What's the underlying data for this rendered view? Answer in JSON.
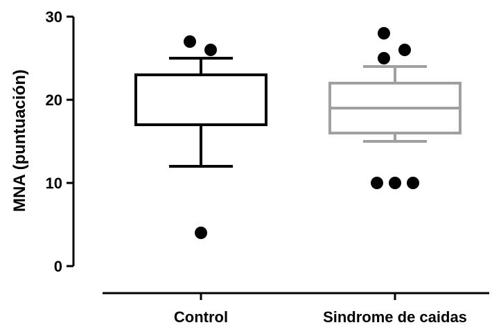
{
  "chart_data": {
    "type": "box",
    "ylabel": "MNA (puntuación)",
    "xlabel": "",
    "ylim": [
      0,
      30
    ],
    "yticks": [
      0,
      10,
      20,
      30
    ],
    "categories": [
      "Control",
      "Sindrome de caidas"
    ],
    "colors": [
      "#000000",
      "#a0a0a0"
    ],
    "outlier_color": "#000000",
    "boxes": [
      {
        "name": "Control",
        "whisker_low": 12,
        "q1": 17,
        "median": 17,
        "q3": 23,
        "whisker_high": 25,
        "outliers": [
          27,
          26,
          4
        ]
      },
      {
        "name": "Sindrome de caidas",
        "whisker_low": 15,
        "q1": 16,
        "median": 19,
        "q3": 22,
        "whisker_high": 24,
        "outliers": [
          28,
          26,
          25,
          10,
          10,
          10
        ]
      }
    ]
  }
}
